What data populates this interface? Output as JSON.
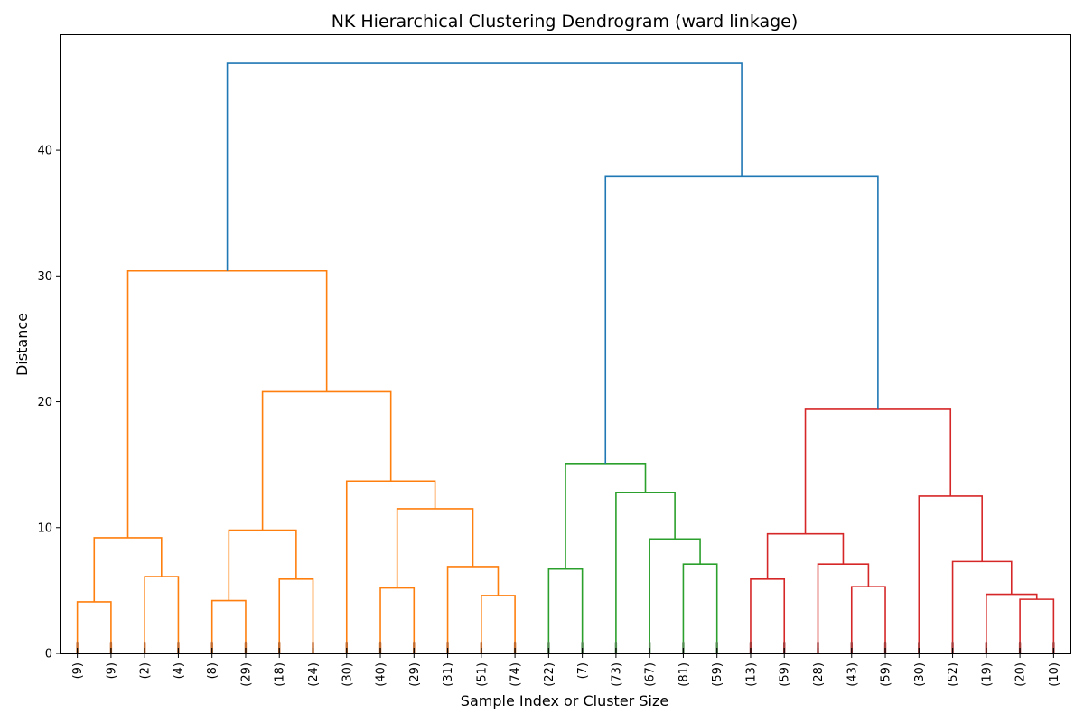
{
  "chart_data": {
    "type": "dendrogram",
    "title": "NK Hierarchical Clustering Dendrogram (ward linkage)",
    "xlabel": "Sample Index or Cluster Size",
    "ylabel": "Distance",
    "ylim": [
      0,
      49.2
    ],
    "yticks": [
      0,
      10,
      20,
      30,
      40
    ],
    "leaves": [
      "(9)",
      "(9)",
      "(2)",
      "(4)",
      "(8)",
      "(29)",
      "(18)",
      "(24)",
      "(30)",
      "(40)",
      "(29)",
      "(31)",
      "(51)",
      "(74)",
      "(22)",
      "(7)",
      "(73)",
      "(67)",
      "(81)",
      "(59)",
      "(13)",
      "(59)",
      "(28)",
      "(43)",
      "(59)",
      "(30)",
      "(52)",
      "(19)",
      "(20)",
      "(10)"
    ],
    "links": [
      {
        "left": 0,
        "right": 1,
        "height": 4.1,
        "color": "#ff7f0e"
      },
      {
        "left": 2,
        "right": 3,
        "height": 6.1,
        "color": "#ff7f0e"
      },
      {
        "left": 30,
        "right": 31,
        "height": 9.2,
        "color": "#ff7f0e"
      },
      {
        "left": 4,
        "right": 5,
        "height": 4.2,
        "color": "#ff7f0e"
      },
      {
        "left": 6,
        "right": 7,
        "height": 5.9,
        "color": "#ff7f0e"
      },
      {
        "left": 33,
        "right": 34,
        "height": 9.8,
        "color": "#ff7f0e"
      },
      {
        "left": 9,
        "right": 10,
        "height": 5.2,
        "color": "#ff7f0e"
      },
      {
        "left": 12,
        "right": 13,
        "height": 4.6,
        "color": "#ff7f0e"
      },
      {
        "left": 11,
        "right": 37,
        "height": 6.9,
        "color": "#ff7f0e"
      },
      {
        "left": 36,
        "right": 38,
        "height": 11.5,
        "color": "#ff7f0e"
      },
      {
        "left": 8,
        "right": 39,
        "height": 13.7,
        "color": "#ff7f0e"
      },
      {
        "left": 35,
        "right": 40,
        "height": 20.8,
        "color": "#ff7f0e"
      },
      {
        "left": 32,
        "right": 41,
        "height": 30.4,
        "color": "#ff7f0e"
      },
      {
        "left": 14,
        "right": 15,
        "height": 6.7,
        "color": "#2ca02c"
      },
      {
        "left": 18,
        "right": 19,
        "height": 7.1,
        "color": "#2ca02c"
      },
      {
        "left": 17,
        "right": 44,
        "height": 9.1,
        "color": "#2ca02c"
      },
      {
        "left": 16,
        "right": 45,
        "height": 12.8,
        "color": "#2ca02c"
      },
      {
        "left": 43,
        "right": 46,
        "height": 15.1,
        "color": "#2ca02c"
      },
      {
        "left": 20,
        "right": 21,
        "height": 5.9,
        "color": "#d62728"
      },
      {
        "left": 23,
        "right": 24,
        "height": 5.3,
        "color": "#d62728"
      },
      {
        "left": 22,
        "right": 49,
        "height": 7.1,
        "color": "#d62728"
      },
      {
        "left": 48,
        "right": 50,
        "height": 9.5,
        "color": "#d62728"
      },
      {
        "left": 28,
        "right": 29,
        "height": 4.3,
        "color": "#d62728"
      },
      {
        "left": 27,
        "right": 52,
        "height": 4.7,
        "color": "#d62728"
      },
      {
        "left": 26,
        "right": 53,
        "height": 7.3,
        "color": "#d62728"
      },
      {
        "left": 25,
        "right": 54,
        "height": 12.5,
        "color": "#d62728"
      },
      {
        "left": 51,
        "right": 55,
        "height": 19.4,
        "color": "#d62728"
      },
      {
        "left": 47,
        "right": 56,
        "height": 37.9,
        "color": "#1f77b4"
      },
      {
        "left": 42,
        "right": 57,
        "height": 46.9,
        "color": "#1f77b4"
      }
    ]
  }
}
